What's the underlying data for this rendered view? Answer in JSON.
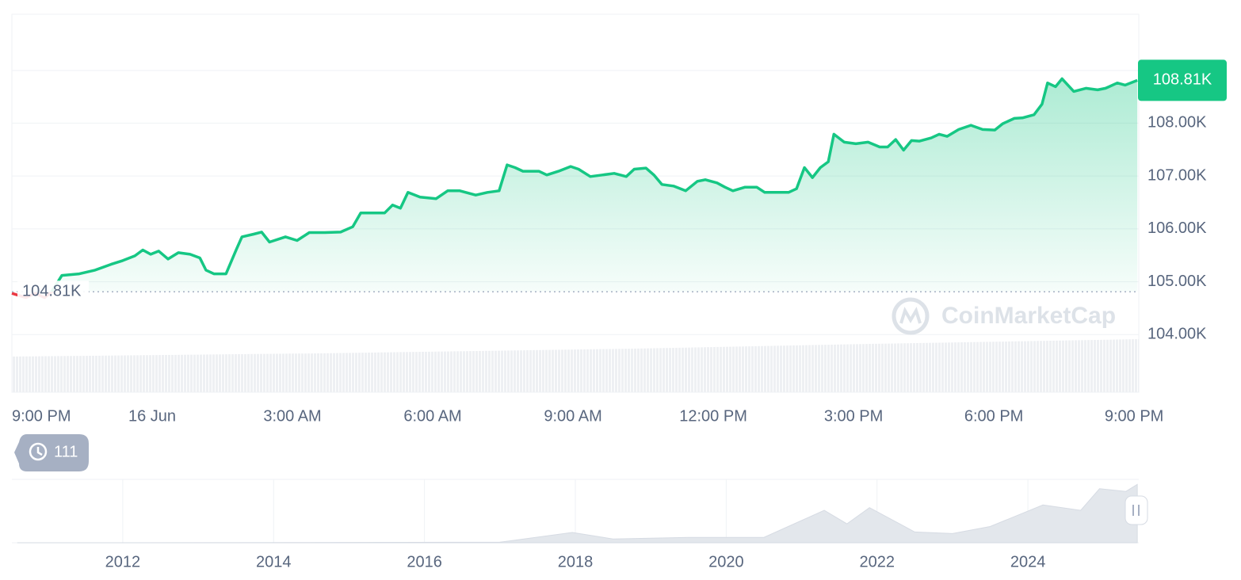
{
  "chart_data": [
    {
      "type": "line",
      "x": [
        0,
        0.3,
        0.5,
        0.7,
        0.85,
        1.07,
        1.44,
        1.78,
        2.12,
        2.37,
        2.63,
        2.8,
        2.97,
        3.14,
        3.34,
        3.56,
        3.81,
        4.02,
        4.15,
        4.32,
        4.58,
        4.8,
        4.92,
        5.17,
        5.34,
        5.51,
        5.85,
        6.1,
        6.36,
        6.69,
        7.03,
        7.29,
        7.46,
        7.71,
        7.97,
        8.14,
        8.31,
        8.47,
        8.73,
        9.07,
        9.32,
        9.58,
        9.92,
        10.17,
        10.42,
        10.59,
        10.76,
        10.93,
        11.27,
        11.44,
        11.69,
        11.95,
        12.12,
        12.37,
        12.63,
        12.88,
        13.14,
        13.31,
        13.56,
        13.73,
        13.9,
        14.15,
        14.41,
        14.66,
        14.83,
        15.08,
        15.25,
        15.42,
        15.68,
        15.93,
        16.1,
        16.36,
        16.61,
        16.78,
        16.95,
        17.12,
        17.29,
        17.46,
        17.58,
        17.8,
        18.05,
        18.31,
        18.56,
        18.73,
        18.9,
        19.07,
        19.24,
        19.41,
        19.66,
        19.83,
        20.0,
        20.25,
        20.51,
        20.76,
        21.02,
        21.19,
        21.44,
        21.61,
        21.86,
        22.03,
        22.15,
        22.32,
        22.46,
        22.71,
        22.97,
        23.22,
        23.39,
        23.64,
        23.81,
        24.07
      ],
      "series": [
        {
          "color": "#16c784",
          "down_color": "#ea3943",
          "values": [
            104780,
            104700,
            104780,
            104700,
            104810,
            105120,
            105150,
            105220,
            105330,
            105400,
            105490,
            105600,
            105520,
            105580,
            105430,
            105550,
            105520,
            105450,
            105220,
            105150,
            105150,
            105610,
            105850,
            105900,
            105940,
            105750,
            105850,
            105780,
            105930,
            105930,
            105940,
            106040,
            106300,
            106300,
            106300,
            106450,
            106390,
            106690,
            106600,
            106570,
            106720,
            106720,
            106640,
            106690,
            106720,
            107210,
            107160,
            107090,
            107090,
            107020,
            107090,
            107180,
            107130,
            106990,
            107020,
            107050,
            106990,
            107130,
            107150,
            107020,
            106840,
            106810,
            106720,
            106900,
            106930,
            106870,
            106790,
            106720,
            106790,
            106790,
            106690,
            106690,
            106690,
            106760,
            107160,
            106970,
            107160,
            107270,
            107790,
            107640,
            107610,
            107640,
            107550,
            107550,
            107690,
            107490,
            107670,
            107660,
            107720,
            107790,
            107750,
            107880,
            107960,
            107880,
            107870,
            107990,
            108090,
            108100,
            108160,
            108360,
            108760,
            108690,
            108840,
            108600,
            108660,
            108630,
            108660,
            108760,
            108720,
            108810
          ]
        }
      ],
      "xlim": [
        0,
        24.1
      ],
      "xticks": [
        {
          "value": 0,
          "label": "9:00 PM"
        },
        {
          "value": 3,
          "label": "16 Jun"
        },
        {
          "value": 6,
          "label": "3:00 AM"
        },
        {
          "value": 9,
          "label": "6:00 AM"
        },
        {
          "value": 12,
          "label": "9:00 AM"
        },
        {
          "value": 15,
          "label": "12:00 PM"
        },
        {
          "value": 18,
          "label": "3:00 PM"
        },
        {
          "value": 21,
          "label": "6:00 PM"
        },
        {
          "value": 24,
          "label": "9:00 PM"
        }
      ],
      "ylim": [
        102910,
        110060
      ],
      "yticks": [
        {
          "value": 104000,
          "label": "104.00K"
        },
        {
          "value": 105000,
          "label": "105.00K"
        },
        {
          "value": 106000,
          "label": "106.00K"
        },
        {
          "value": 107000,
          "label": "107.00K"
        },
        {
          "value": 108000,
          "label": "108.00K"
        }
      ],
      "reference": {
        "value": 104810,
        "label": "104.81K"
      },
      "current": {
        "value": 108810,
        "label": "108.81K"
      },
      "grid": true
    },
    {
      "type": "area",
      "x": [
        2010.6,
        2013,
        2017,
        2017.96,
        2018.5,
        2019.5,
        2020.5,
        2021.3,
        2021.6,
        2021.9,
        2022.5,
        2023,
        2023.5,
        2024.2,
        2024.7,
        2024.95,
        2025.3,
        2025.45
      ],
      "series": [
        {
          "color": "#e3e7ec",
          "values": [
            0,
            200,
            1000,
            19000,
            7000,
            10000,
            10000,
            60000,
            35000,
            65000,
            20000,
            17000,
            30000,
            70000,
            60000,
            100000,
            95000,
            108000
          ]
        }
      ],
      "xlim": [
        2010.53,
        2025.47
      ],
      "ylim": [
        0,
        110000
      ],
      "xticks": [
        2012,
        2014,
        2016,
        2018,
        2020,
        2022,
        2024
      ]
    }
  ],
  "watermark": "CoinMarketCap",
  "history_count": "111"
}
